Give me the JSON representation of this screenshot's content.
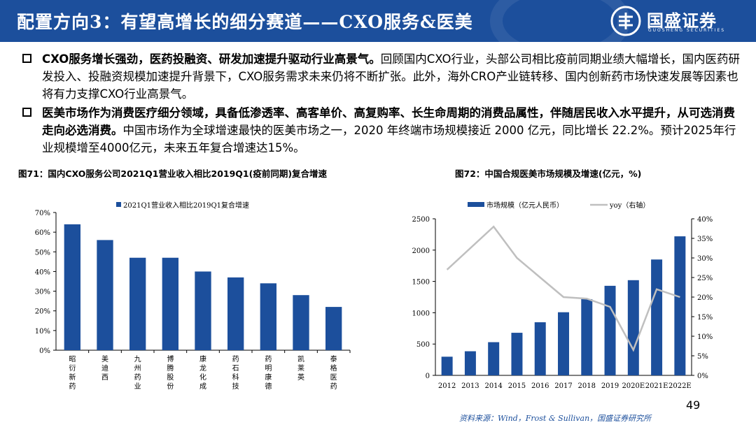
{
  "header": {
    "title": "配置方向3：有望高增长的细分赛道——CXO服务&医美",
    "logo_name": "国盛证券",
    "logo_en": "GUOSHENG SECURITIES"
  },
  "bullets": [
    {
      "bold": "CXO服务增长强劲，医药投融资、研发加速提升驱动行业高景气。",
      "text": "回顾国内CXO行业，头部公司相比疫前同期业绩大幅增长，国内医药研发投入、投融资规模加速提升背景下，CXO服务需求未来仍将不断扩张。此外，海外CRO产业链转移、国内创新药市场快速发展等因素也将有力支撑CXO行业高景气。"
    },
    {
      "bold": "医美市场作为消费医疗细分领域，具备低渗透率、高客单价、高复购率、长生命周期的消费品属性，伴随居民收入水平提升，从可选消费走向必选消费。",
      "text": "中国市场作为全球增速最快的医美市场之一，2020 年终端市场规模接近 2000 亿元，同比增长 22.2%。预计2025年行业规模增至4000亿元，未来五年复合增速达15%。"
    }
  ],
  "figures": {
    "fig71_caption": "图71：国内CXO服务公司2021Q1营业收入相比2019Q1(疫前同期)复合增速",
    "fig72_caption": "图72：中国合规医美市场规模及增速(亿元，%)"
  },
  "chart_data": [
    {
      "type": "bar",
      "title": "",
      "series": [
        {
          "name": "2021Q1营业收入相比2019Q1复合增速",
          "values": [
            64,
            56,
            47,
            47,
            40,
            37,
            34,
            28,
            22
          ]
        }
      ],
      "categories": [
        "昭衍新药",
        "美迪西",
        "九州药业",
        "博腾股份",
        "康龙化成",
        "药石科技",
        "药明康德",
        "凯莱英",
        "泰格医药"
      ],
      "y_ticks": [
        "0%",
        "10%",
        "20%",
        "30%",
        "40%",
        "50%",
        "60%",
        "70%"
      ],
      "ylim": [
        0,
        70
      ],
      "color": "#1c4f9c",
      "legend": "top"
    },
    {
      "type": "bar+line",
      "title": "",
      "categories": [
        "2012",
        "2013",
        "2014",
        "2015",
        "2016",
        "2017",
        "2018",
        "2019",
        "2020E",
        "2021E",
        "2022E"
      ],
      "series": [
        {
          "name": "市场规模（亿元人民币）",
          "type": "bar",
          "axis": "left",
          "values": [
            298,
            385,
            530,
            680,
            848,
            1008,
            1217,
            1430,
            1520,
            1850,
            2220
          ],
          "color": "#1c4f9c"
        },
        {
          "name": "yoy（右轴）",
          "type": "line",
          "axis": "right",
          "values": [
            27,
            null,
            38,
            30,
            25,
            20,
            19.6,
            17.5,
            6.5,
            22,
            20
          ],
          "color": "#bfbfbf"
        }
      ],
      "left_ticks": [
        "0",
        "500",
        "1000",
        "1500",
        "2000",
        "2500"
      ],
      "right_ticks": [
        "0%",
        "5%",
        "10%",
        "15%",
        "20%",
        "25%",
        "30%",
        "35%",
        "40%"
      ],
      "ylim_left": [
        0,
        2500
      ],
      "ylim_right": [
        0,
        40
      ],
      "legend": "top"
    }
  ],
  "footer": {
    "source": "资料来源：Wind，Frost & Sullivan，国盛证券研究所",
    "page": "49"
  }
}
